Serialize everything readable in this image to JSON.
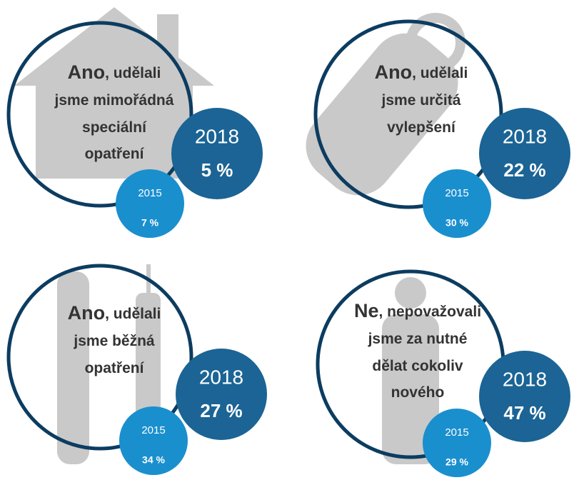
{
  "panels": [
    {
      "lead": "Ano",
      "lines": [
        ", udělali",
        "jsme mimořádná",
        "speciální",
        "opatření"
      ],
      "year_new": "2018",
      "value_new": "5 %",
      "year_old": "2015",
      "value_old": "7 %"
    },
    {
      "lead": "Ano",
      "lines": [
        ", udělali",
        "jsme určitá",
        "vylepšení"
      ],
      "year_new": "2018",
      "value_new": "22 %",
      "year_old": "2015",
      "value_old": "30 %"
    },
    {
      "lead": "Ano",
      "lines": [
        ", udělali",
        "jsme běžná",
        "opatření"
      ],
      "year_new": "2018",
      "value_new": "27 %",
      "year_old": "2015",
      "value_old": "34 %"
    },
    {
      "lead": "Ne",
      "lines": [
        ", nepovažovali",
        "jsme za nutné",
        "dělat cokoliv",
        "nového"
      ],
      "year_new": "2018",
      "value_new": "47 %",
      "year_old": "2015",
      "value_old": "29 %"
    }
  ]
}
